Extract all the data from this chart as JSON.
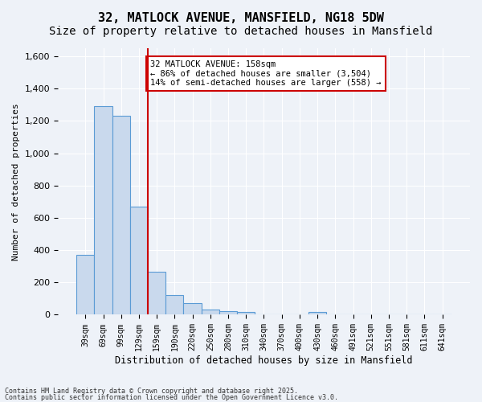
{
  "title_line1": "32, MATLOCK AVENUE, MANSFIELD, NG18 5DW",
  "title_line2": "Size of property relative to detached houses in Mansfield",
  "xlabel": "Distribution of detached houses by size in Mansfield",
  "ylabel": "Number of detached properties",
  "categories": [
    "39sqm",
    "69sqm",
    "99sqm",
    "129sqm",
    "159sqm",
    "190sqm",
    "220sqm",
    "250sqm",
    "280sqm",
    "310sqm",
    "340sqm",
    "370sqm",
    "400sqm",
    "430sqm",
    "460sqm",
    "491sqm",
    "521sqm",
    "551sqm",
    "581sqm",
    "611sqm",
    "641sqm"
  ],
  "values": [
    370,
    1290,
    1230,
    670,
    265,
    120,
    70,
    30,
    20,
    15,
    0,
    0,
    0,
    15,
    0,
    0,
    0,
    0,
    0,
    0,
    0
  ],
  "bar_color": "#c9d9ed",
  "bar_edge_color": "#5b9bd5",
  "red_line_index": 4,
  "annotation_text": "32 MATLOCK AVENUE: 158sqm\n← 86% of detached houses are smaller (3,504)\n14% of semi-detached houses are larger (558) →",
  "annotation_box_color": "#ffffff",
  "annotation_box_edge": "#cc0000",
  "ylim": [
    0,
    1650
  ],
  "yticks": [
    0,
    200,
    400,
    600,
    800,
    1000,
    1200,
    1400,
    1600
  ],
  "footer_line1": "Contains HM Land Registry data © Crown copyright and database right 2025.",
  "footer_line2": "Contains public sector information licensed under the Open Government Licence v3.0.",
  "bg_color": "#eef2f8",
  "grid_color": "#ffffff",
  "title_fontsize": 11,
  "subtitle_fontsize": 10
}
